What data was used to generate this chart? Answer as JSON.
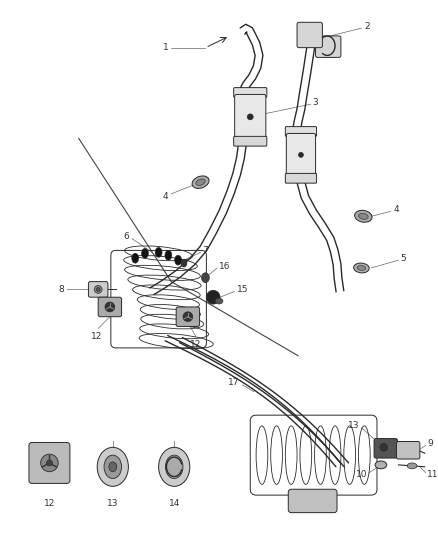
{
  "bg_color": "#ffffff",
  "fig_width": 4.38,
  "fig_height": 5.33,
  "dpi": 100,
  "parts_color": "#2a2a2a",
  "line_color": "#666666",
  "label_color": "#333333",
  "label_fs": 6.5,
  "lw_pipe": 1.0,
  "lw_part": 0.7,
  "lw_leader": 0.5
}
